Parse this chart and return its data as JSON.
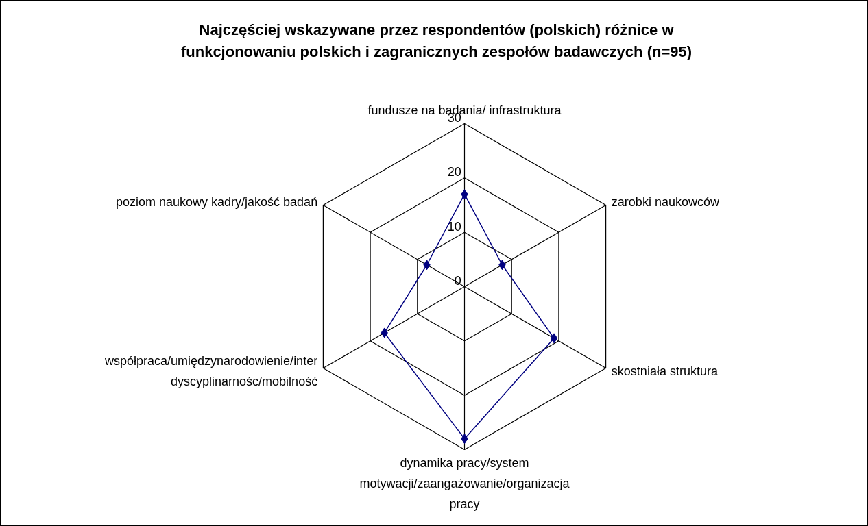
{
  "chart_data": {
    "type": "radar",
    "title": "Najczęściej wskazywane przez respondentów (polskich) różnice w funkcjonowaniu polskich i zagranicznych zespołów badawczych (n=95)",
    "categories": [
      "fundusze na badania/ infrastruktura",
      "zarobki naukowców",
      "skostniała struktura",
      "dynamika pracy/system motywacji/zaangażowanie/organizacja pracy",
      "współpraca/umiędzynarodowienie/inter dyscyplinarnośc/mobilność",
      "poziom naukowy kadry/jakość badań"
    ],
    "series": [
      {
        "color": "#000080",
        "values": [
          17,
          8,
          19,
          28,
          17,
          8
        ]
      }
    ],
    "ylim": [
      0,
      30
    ],
    "yticks": [
      0,
      10,
      20,
      30
    ],
    "marker": "diamond",
    "line_style": "solid"
  }
}
